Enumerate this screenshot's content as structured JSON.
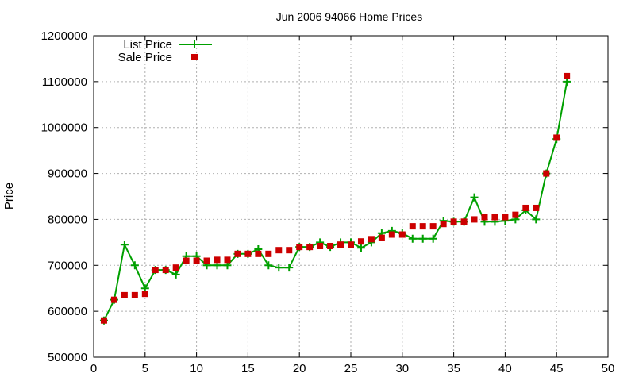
{
  "chart_data": {
    "type": "line",
    "title": "Jun 2006 94066 Home Prices",
    "xlabel": "",
    "ylabel": "Price",
    "xlim": [
      0,
      50
    ],
    "ylim": [
      500000,
      1200000
    ],
    "x_ticks": [
      "0",
      "5",
      "10",
      "15",
      "20",
      "25",
      "30",
      "35",
      "40",
      "45",
      "50"
    ],
    "y_ticks": [
      "500000",
      "600000",
      "700000",
      "800000",
      "900000",
      "1000000",
      "1100000",
      "1200000"
    ],
    "grid": true,
    "legend_position": "top-left",
    "series": [
      {
        "name": "List Price",
        "style": "line-with-plus-markers",
        "color": "#00a000",
        "x": [
          1,
          2,
          3,
          4,
          5,
          6,
          7,
          8,
          9,
          10,
          11,
          12,
          13,
          14,
          15,
          16,
          17,
          18,
          19,
          20,
          21,
          22,
          23,
          24,
          25,
          26,
          27,
          28,
          29,
          30,
          31,
          32,
          33,
          34,
          35,
          36,
          37,
          38,
          39,
          40,
          41,
          42,
          43,
          44,
          45,
          46
        ],
        "values": [
          580000,
          625000,
          745000,
          700000,
          650000,
          690000,
          690000,
          680000,
          720000,
          720000,
          700000,
          700000,
          700000,
          725000,
          725000,
          735000,
          700000,
          695000,
          695000,
          740000,
          740000,
          750000,
          740000,
          750000,
          750000,
          738000,
          750000,
          770000,
          775000,
          770000,
          758000,
          758000,
          758000,
          797000,
          795000,
          795000,
          848000,
          795000,
          795000,
          797000,
          800000,
          820000,
          800000,
          900000,
          975000,
          1100000
        ]
      },
      {
        "name": "Sale Price",
        "style": "square-markers",
        "color": "#cc0000",
        "x": [
          1,
          2,
          3,
          4,
          5,
          6,
          7,
          8,
          9,
          10,
          11,
          12,
          13,
          14,
          15,
          16,
          17,
          18,
          19,
          20,
          21,
          22,
          23,
          24,
          25,
          26,
          27,
          28,
          29,
          30,
          31,
          32,
          33,
          34,
          35,
          36,
          37,
          38,
          39,
          40,
          41,
          42,
          43,
          44,
          45,
          46
        ],
        "values": [
          580000,
          625000,
          635000,
          635000,
          638000,
          690000,
          690000,
          695000,
          710000,
          710000,
          710000,
          712000,
          712000,
          725000,
          725000,
          725000,
          725000,
          733000,
          733000,
          740000,
          740000,
          742000,
          742000,
          745000,
          745000,
          752000,
          757000,
          760000,
          767000,
          767000,
          785000,
          785000,
          785000,
          790000,
          795000,
          795000,
          800000,
          805000,
          805000,
          805000,
          810000,
          825000,
          825000,
          900000,
          978000,
          1112000
        ]
      }
    ]
  }
}
